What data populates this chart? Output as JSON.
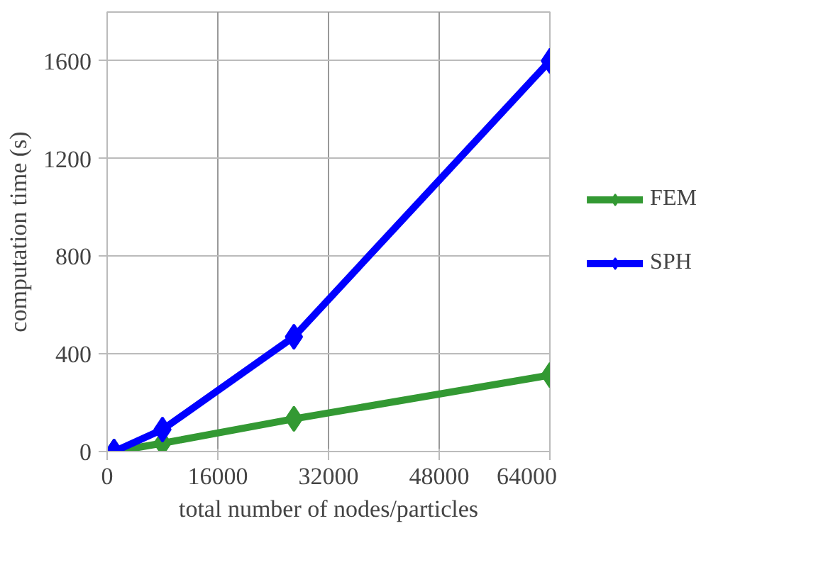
{
  "chart_data": {
    "type": "line",
    "xlabel": "total number of nodes/particles",
    "ylabel": "computation time (s)",
    "x": [
      1000,
      8000,
      27000,
      64000
    ],
    "series": [
      {
        "name": "FEM",
        "color": "#339933",
        "values": [
          0,
          34,
          134,
          313
        ]
      },
      {
        "name": "SPH",
        "color": "#0000ff",
        "values": [
          0,
          90,
          470,
          1600
        ]
      }
    ],
    "xlim": [
      0,
      64000
    ],
    "xticks": [
      0,
      16000,
      32000,
      48000,
      64000
    ],
    "ylim": [
      0,
      1800
    ],
    "yticks": [
      0,
      400,
      800,
      1200,
      1600
    ],
    "grid": true,
    "legend": "right",
    "marker": "diamond",
    "line_style": "solid"
  }
}
